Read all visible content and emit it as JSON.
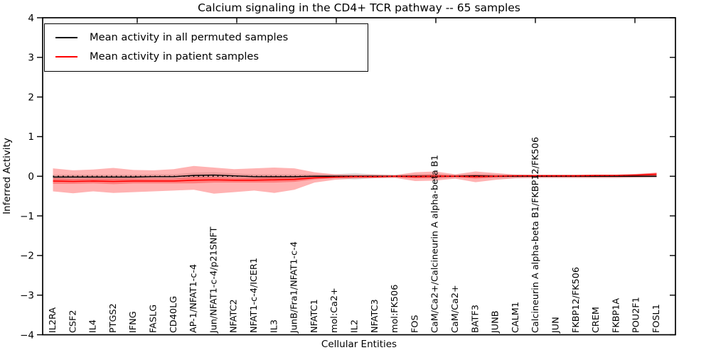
{
  "page": {
    "background": "#ffffff"
  },
  "chart_data": {
    "type": "line",
    "title": "Calcium signaling in the CD4+ TCR pathway -- 65 samples",
    "xlabel": "Cellular Entities",
    "ylabel": "Inferred Activity",
    "ylim": [
      -4,
      4
    ],
    "yticks": [
      -4,
      -3,
      -2,
      -1,
      0,
      1,
      2,
      3,
      4
    ],
    "grid": false,
    "legend_position": "upper left",
    "zero_line": {
      "style": "dotted",
      "color": "#000000",
      "value": 0
    },
    "categories": [
      "IL2RA",
      "CSF2",
      "IL4",
      "PTGS2",
      "IFNG",
      "FASLG",
      "CD40LG",
      "AP-1/NFAT1-c-4",
      "Jun/NFAT1-c-4/p21SNFT",
      "NFATC2",
      "NFAT1-c-4/ICER1",
      "IL3",
      "JunB/Fra1/NFAT1-c-4",
      "NFATC1",
      "mol:Ca2+",
      "IL2",
      "NFATC3",
      "mol:FK506",
      "FOS",
      "CaM/Ca2+/Calcineurin A alpha-beta B1",
      "CaM/Ca2+",
      "BATF3",
      "JUNB",
      "CALM1",
      "Calcineurin A alpha-beta B1/FKBP12/FK506",
      "JUN",
      "FKBP12/FK506",
      "CREM",
      "FKBP1A",
      "POU2F1",
      "FOSL1"
    ],
    "series": [
      {
        "name": "Mean activity in all permuted samples",
        "color": "#000000",
        "values": [
          -0.02,
          -0.02,
          -0.02,
          -0.02,
          -0.02,
          -0.01,
          -0.01,
          0.02,
          0.03,
          0.01,
          -0.01,
          -0.01,
          -0.01,
          0,
          0,
          0,
          0,
          0,
          0,
          0,
          0,
          0.01,
          0,
          0,
          0,
          0,
          0,
          0,
          0,
          0,
          0
        ],
        "band": {
          "color": "rgba(0,0,0,0.12)",
          "upper": [
            0.04,
            0.04,
            0.04,
            0.04,
            0.04,
            0.05,
            0.05,
            0.09,
            0.1,
            0.07,
            0.05,
            0.05,
            0.05,
            0.05,
            0.05,
            0.08,
            0.05,
            0.04,
            0.05,
            0.05,
            0.04,
            0.06,
            0.05,
            0.05,
            0.04,
            0.04,
            0.04,
            0.04,
            0.04,
            0.04,
            0.04
          ],
          "lower": [
            -0.08,
            -0.08,
            -0.08,
            -0.08,
            -0.08,
            -0.07,
            -0.07,
            -0.05,
            -0.04,
            -0.05,
            -0.07,
            -0.07,
            -0.07,
            -0.05,
            -0.05,
            -0.08,
            -0.05,
            -0.04,
            -0.05,
            -0.05,
            -0.04,
            -0.04,
            -0.05,
            -0.05,
            -0.04,
            -0.04,
            -0.04,
            -0.04,
            -0.04,
            -0.04,
            -0.04
          ]
        }
      },
      {
        "name": "Mean activity in patient samples",
        "color": "#ff0000",
        "values": [
          -0.12,
          -0.13,
          -0.12,
          -0.13,
          -0.12,
          -0.12,
          -0.12,
          -0.1,
          -0.09,
          -0.1,
          -0.1,
          -0.09,
          -0.08,
          -0.04,
          -0.02,
          -0.01,
          -0.01,
          0,
          -0.01,
          0,
          0,
          -0.01,
          0,
          0.01,
          0.01,
          0.01,
          0.01,
          0.02,
          0.02,
          0.03,
          0.05
        ],
        "band": {
          "color": "rgba(255,0,0,0.30)",
          "upper": [
            0.2,
            0.15,
            0.17,
            0.21,
            0.16,
            0.15,
            0.18,
            0.26,
            0.22,
            0.18,
            0.2,
            0.22,
            0.2,
            0.1,
            0.05,
            0.04,
            0.04,
            0.03,
            0.1,
            0.12,
            0.05,
            0.12,
            0.08,
            0.04,
            0.04,
            0.04,
            0.04,
            0.04,
            0.04,
            0.05,
            0.09
          ],
          "lower": [
            -0.38,
            -0.43,
            -0.38,
            -0.42,
            -0.4,
            -0.38,
            -0.36,
            -0.34,
            -0.44,
            -0.4,
            -0.36,
            -0.42,
            -0.34,
            -0.16,
            -0.09,
            -0.06,
            -0.05,
            -0.04,
            -0.12,
            -0.11,
            -0.06,
            -0.15,
            -0.09,
            -0.05,
            -0.04,
            -0.04,
            -0.04,
            -0.04,
            -0.04,
            -0.03,
            -0.02
          ]
        },
        "inner_band": {
          "color": "rgba(255,0,0,0.30)",
          "upper": [
            -0.05,
            -0.07,
            -0.06,
            -0.06,
            -0.06,
            -0.06,
            -0.06,
            -0.02,
            -0.02,
            -0.04,
            -0.04,
            -0.02,
            -0.02,
            0.0,
            0.01,
            0.01,
            0.01,
            0.02,
            0.03,
            0.05,
            0.02,
            0.04,
            0.03,
            0.03,
            0.03,
            0.03,
            0.03,
            0.04,
            0.04,
            0.06,
            0.09
          ],
          "lower": [
            -0.19,
            -0.19,
            -0.18,
            -0.2,
            -0.18,
            -0.18,
            -0.18,
            -0.18,
            -0.16,
            -0.16,
            -0.16,
            -0.16,
            -0.14,
            -0.08,
            -0.05,
            -0.03,
            -0.03,
            -0.02,
            -0.05,
            -0.05,
            -0.02,
            -0.06,
            -0.03,
            -0.01,
            -0.01,
            -0.01,
            -0.01,
            0.0,
            0.0,
            0.0,
            0.01
          ]
        }
      }
    ]
  }
}
